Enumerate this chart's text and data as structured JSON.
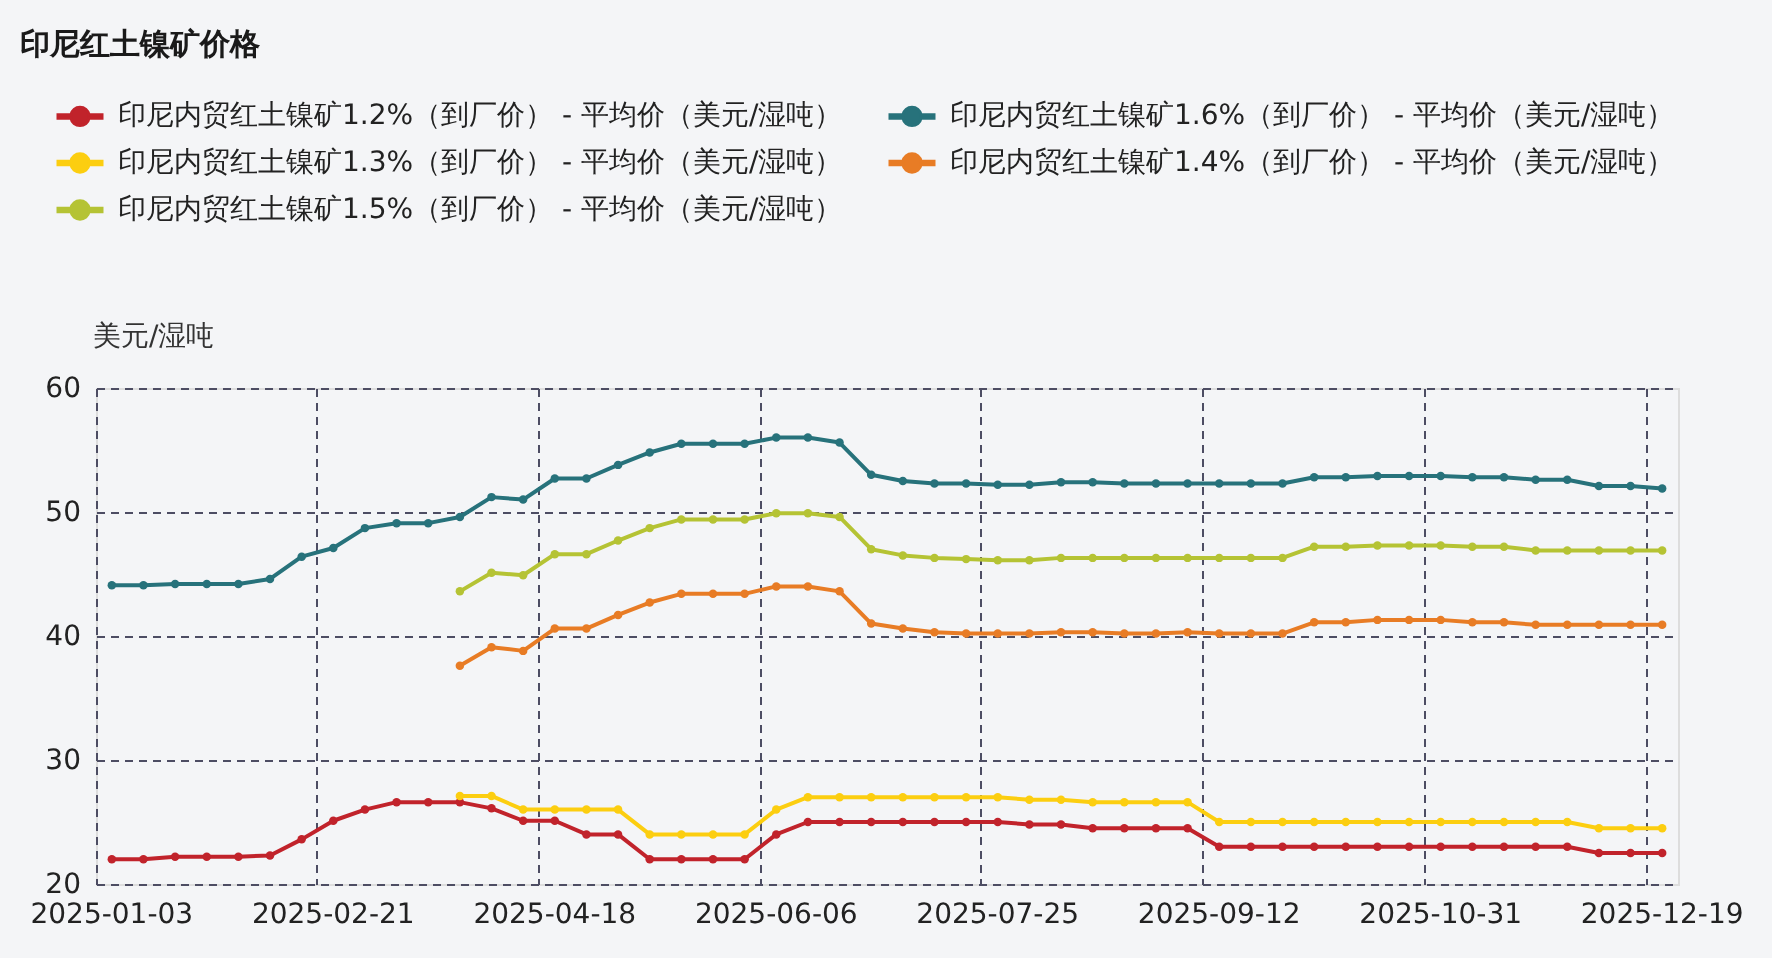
{
  "chart_data": {
    "type": "line",
    "title": "印尼红土镍矿价格",
    "ylabel": "美元/湿吨",
    "categories": [
      "2025-01-03",
      null,
      null,
      null,
      null,
      null,
      null,
      "2025-02-21",
      null,
      null,
      null,
      null,
      null,
      null,
      "2025-04-18",
      null,
      null,
      null,
      null,
      null,
      null,
      "2025-06-06",
      null,
      null,
      null,
      null,
      null,
      null,
      "2025-07-25",
      null,
      null,
      null,
      null,
      null,
      null,
      "2025-09-12",
      null,
      null,
      null,
      null,
      null,
      null,
      "2025-10-31",
      null,
      null,
      null,
      null,
      null,
      null,
      "2025-12-19"
    ],
    "series": [
      {
        "name": "印尼内贸红土镍矿1.2%（到厂价） - 平均价（美元/湿吨）",
        "color": "#c1232b",
        "values": [
          22.0,
          22.0,
          22.2,
          22.2,
          22.2,
          22.3,
          23.6,
          25.1,
          26.0,
          26.6,
          26.6,
          26.6,
          26.1,
          25.1,
          25.1,
          24.0,
          24.0,
          22.0,
          22.0,
          22.0,
          22.0,
          24.0,
          25.0,
          25.0,
          25.0,
          25.0,
          25.0,
          25.0,
          25.0,
          24.8,
          24.8,
          24.5,
          24.5,
          24.5,
          24.5,
          23.0,
          23.0,
          23.0,
          23.0,
          23.0,
          23.0,
          23.0,
          23.0,
          23.0,
          23.0,
          23.0,
          23.0,
          22.5,
          22.5,
          22.5
        ]
      },
      {
        "name": "印尼内贸红土镍矿1.6%（到厂价） - 平均价（美元/湿吨）",
        "color": "#27727b",
        "values": [
          44.1,
          44.1,
          44.2,
          44.2,
          44.2,
          44.6,
          46.4,
          47.1,
          48.7,
          49.1,
          49.1,
          49.6,
          51.2,
          51.0,
          52.7,
          52.7,
          53.8,
          54.8,
          55.5,
          55.5,
          55.5,
          56.0,
          56.0,
          55.6,
          53.0,
          52.5,
          52.3,
          52.3,
          52.2,
          52.2,
          52.4,
          52.4,
          52.3,
          52.3,
          52.3,
          52.3,
          52.3,
          52.3,
          52.8,
          52.8,
          52.9,
          52.9,
          52.9,
          52.8,
          52.8,
          52.6,
          52.6,
          52.1,
          52.1,
          51.9
        ]
      },
      {
        "name": "印尼内贸红土镍矿1.3%（到厂价） - 平均价（美元/湿吨）",
        "color": "#fcce10",
        "values": [
          null,
          null,
          null,
          null,
          null,
          null,
          null,
          null,
          null,
          null,
          null,
          27.1,
          27.1,
          26.0,
          26.0,
          26.0,
          26.0,
          24.0,
          24.0,
          24.0,
          24.0,
          26.0,
          27.0,
          27.0,
          27.0,
          27.0,
          27.0,
          27.0,
          27.0,
          26.8,
          26.8,
          26.6,
          26.6,
          26.6,
          26.6,
          25.0,
          25.0,
          25.0,
          25.0,
          25.0,
          25.0,
          25.0,
          25.0,
          25.0,
          25.0,
          25.0,
          25.0,
          24.5,
          24.5,
          24.5
        ]
      },
      {
        "name": "印尼内贸红土镍矿1.4%（到厂价） - 平均价（美元/湿吨）",
        "color": "#e87c25",
        "values": [
          null,
          null,
          null,
          null,
          null,
          null,
          null,
          null,
          null,
          null,
          null,
          37.6,
          39.1,
          38.8,
          40.6,
          40.6,
          41.7,
          42.7,
          43.4,
          43.4,
          43.4,
          44.0,
          44.0,
          43.6,
          41.0,
          40.6,
          40.3,
          40.2,
          40.2,
          40.2,
          40.3,
          40.3,
          40.2,
          40.2,
          40.3,
          40.2,
          40.2,
          40.2,
          41.1,
          41.1,
          41.3,
          41.3,
          41.3,
          41.1,
          41.1,
          40.9,
          40.9,
          40.9,
          40.9,
          40.9
        ]
      },
      {
        "name": "印尼内贸红土镍矿1.5%（到厂价） - 平均价（美元/湿吨）",
        "color": "#b5c334",
        "values": [
          null,
          null,
          null,
          null,
          null,
          null,
          null,
          null,
          null,
          null,
          null,
          43.6,
          45.1,
          44.9,
          46.6,
          46.6,
          47.7,
          48.7,
          49.4,
          49.4,
          49.4,
          49.9,
          49.9,
          49.6,
          47.0,
          46.5,
          46.3,
          46.2,
          46.1,
          46.1,
          46.3,
          46.3,
          46.3,
          46.3,
          46.3,
          46.3,
          46.3,
          46.3,
          47.2,
          47.2,
          47.3,
          47.3,
          47.3,
          47.2,
          47.2,
          46.9,
          46.9,
          46.9,
          46.9,
          46.9
        ]
      }
    ],
    "ylim": [
      20,
      60
    ],
    "yticks": [
      20,
      30,
      40,
      50,
      60
    ],
    "grid": true,
    "legend": "top left",
    "marker": "circle",
    "line_style": "solid"
  }
}
